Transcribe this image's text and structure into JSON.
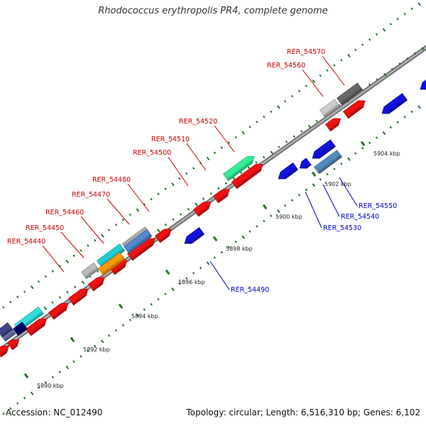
{
  "title": "Rhodococcus erythropolis PR4, complete genome",
  "footer": {
    "accession": "Accession: NC_012490",
    "summary": "Topology: circular; Length: 6,516,310 bp; Genes: 6,102"
  },
  "colors": {
    "forward_gene": "#ee1111",
    "reverse_gene": "#1111dd",
    "forward_label": "#cc0000",
    "reverse_label": "#0000cc",
    "backbone": "#888888",
    "tick": "#227722"
  },
  "kbp_ticks": [
    {
      "text": "5890 kbp"
    },
    {
      "text": "5892 kbp"
    },
    {
      "text": "5894 kbp"
    },
    {
      "text": "5896 kbp"
    },
    {
      "text": "5898 kbp"
    },
    {
      "text": "5900 kbp"
    },
    {
      "text": "5902 kbp"
    },
    {
      "text": "5904 kbp"
    }
  ],
  "gene_labels": [
    {
      "text": "RER_54440",
      "strand": "forward"
    },
    {
      "text": "RER_54450",
      "strand": "forward"
    },
    {
      "text": "RER_54460",
      "strand": "forward"
    },
    {
      "text": "RER_54470",
      "strand": "forward"
    },
    {
      "text": "RER_54480",
      "strand": "forward"
    },
    {
      "text": "RER_54500",
      "strand": "forward"
    },
    {
      "text": "RER_54510",
      "strand": "forward"
    },
    {
      "text": "RER_54520",
      "strand": "forward"
    },
    {
      "text": "RER_54560",
      "strand": "forward"
    },
    {
      "text": "RER_54570",
      "strand": "forward"
    },
    {
      "text": "RER_54490",
      "strand": "reverse"
    },
    {
      "text": "RER_54530",
      "strand": "reverse"
    },
    {
      "text": "RER_54540",
      "strand": "reverse"
    },
    {
      "text": "RER_54550",
      "strand": "reverse"
    }
  ]
}
